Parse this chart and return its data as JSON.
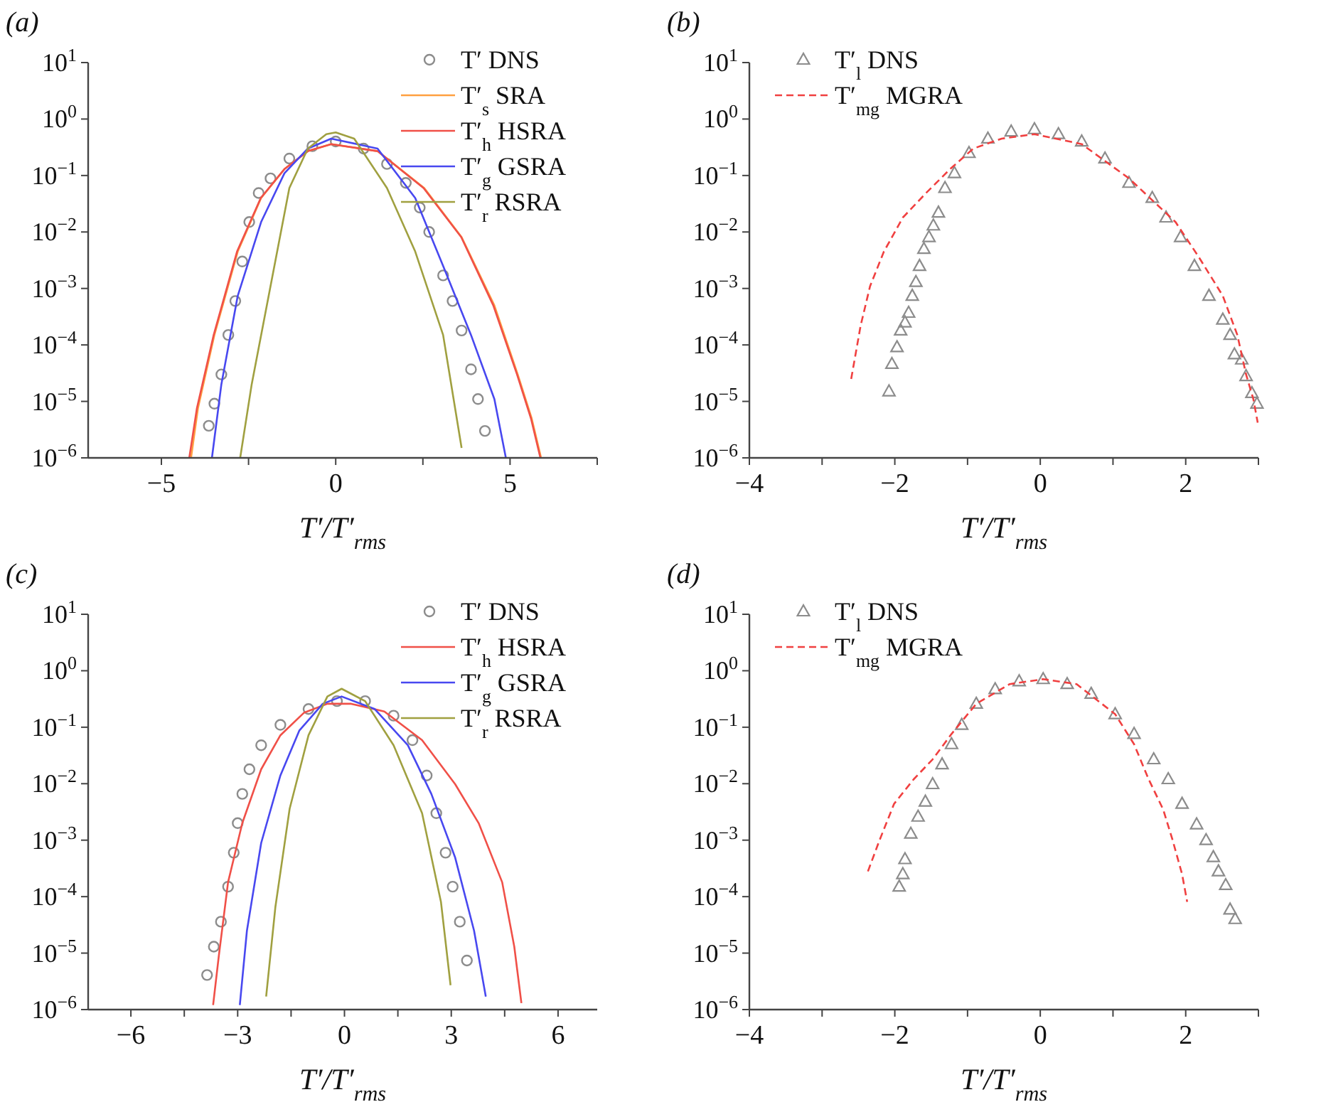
{
  "chart_data": [
    {
      "type": "line",
      "title": "(a)",
      "xlabel": "T′/T′$_{rms}$",
      "log": "y",
      "legend": "top right",
      "xlim": [
        -7.1,
        7.5
      ],
      "xticks": [
        {
          "value": -5,
          "label": "−5"
        },
        {
          "value": -2.5,
          "label": null
        },
        {
          "value": 0,
          "label": "0"
        },
        {
          "value": 2.5,
          "label": null
        },
        {
          "value": 5,
          "label": "5"
        },
        {
          "value": 7.5,
          "label": null
        }
      ],
      "ylim": [
        1e-06,
        10
      ],
      "yticks": [
        {
          "value": 10,
          "label": "10$^{1}$"
        },
        {
          "value": 1,
          "label": "10$^{0}$"
        },
        {
          "value": 0.1,
          "label": "10$^{−1}$"
        },
        {
          "value": 0.01,
          "label": "10$^{−2}$"
        },
        {
          "value": 0.001,
          "label": "10$^{−3}$"
        },
        {
          "value": 0.0001,
          "label": "10$^{−4}$"
        },
        {
          "value": 1e-05,
          "label": "10$^{−5}$"
        },
        {
          "value": 1e-06,
          "label": "10$^{−6}$"
        }
      ],
      "series": [
        {
          "name": "T′ DNS",
          "type": "scatter",
          "marker": "circle",
          "color": "#8c8c8c",
          "x": [
            -3.64,
            -3.48,
            -3.28,
            -3.08,
            -2.88,
            -2.68,
            -2.48,
            -2.21,
            -1.87,
            -1.33,
            -0.67,
            0,
            0.8,
            1.47,
            2.01,
            2.41,
            2.68,
            3.08,
            3.35,
            3.61,
            3.88,
            4.08,
            4.28
          ],
          "values": [
            3.7e-06,
            9.1e-06,
            3e-05,
            0.00015,
            0.0006,
            0.003,
            0.015,
            0.049,
            0.089,
            0.2,
            0.33,
            0.4,
            0.3,
            0.16,
            0.074,
            0.027,
            0.01,
            0.0017,
            0.0006,
            0.00018,
            3.7e-05,
            1.1e-05,
            3e-06
          ]
        },
        {
          "name": "T′$_{s}$ SRA",
          "type": "line",
          "color": "#ffa040",
          "x": [
            -4.15,
            -3.95,
            -3.48,
            -2.81,
            -2.14,
            -1.47,
            -0.8,
            -0.13,
            1.2,
            2.54,
            3.61,
            4.55,
            5.22,
            5.62,
            5.89
          ],
          "values": [
            1e-06,
            7.6e-06,
            0.00015,
            0.0045,
            0.04,
            0.13,
            0.27,
            0.36,
            0.27,
            0.06,
            0.0081,
            0.0005,
            3e-05,
            5e-06,
            1e-06
          ]
        },
        {
          "name": "T′$_{h}$ HSRA",
          "type": "line",
          "color": "#f05048",
          "x": [
            -4.2,
            -3.98,
            -3.5,
            -2.83,
            -2.15,
            -1.47,
            -0.8,
            -0.13,
            1.2,
            2.52,
            3.6,
            4.52,
            5.2,
            5.6,
            5.87
          ],
          "values": [
            1e-06,
            7.6e-06,
            0.00015,
            0.0045,
            0.04,
            0.13,
            0.27,
            0.36,
            0.27,
            0.06,
            0.0081,
            0.0005,
            3e-05,
            5e-06,
            1e-06
          ]
        },
        {
          "name": "T′$_{g}$ GSRA",
          "type": "line",
          "color": "#4848f0",
          "x": [
            -3.55,
            -3.28,
            -2.81,
            -2.14,
            -1.47,
            -0.8,
            -0.13,
            1.2,
            2.28,
            3.08,
            3.88,
            4.55,
            4.88
          ],
          "values": [
            1e-06,
            2e-05,
            0.00074,
            0.015,
            0.11,
            0.3,
            0.45,
            0.3,
            0.04,
            0.0025,
            0.00015,
            1.1e-05,
            1e-06
          ]
        },
        {
          "name": "T′$_{r}$ RSRA",
          "type": "line",
          "color": "#a0a040",
          "x": [
            -2.74,
            -2.41,
            -1.87,
            -1.33,
            -0.8,
            -0.27,
            0,
            0.53,
            1.47,
            2.28,
            3.08,
            3.61
          ],
          "values": [
            1e-06,
            2e-05,
            0.0011,
            0.06,
            0.3,
            0.54,
            0.58,
            0.45,
            0.06,
            0.0045,
            0.00015,
            1.5e-06
          ]
        }
      ]
    },
    {
      "type": "line",
      "title": "(b)",
      "xlabel": "T′/T′$_{rms}$",
      "log": "y",
      "legend": "top left",
      "xlim": [
        -4,
        3
      ],
      "xticks": [
        {
          "value": -4,
          "label": "−4"
        },
        {
          "value": -3,
          "label": null
        },
        {
          "value": -2,
          "label": "−2"
        },
        {
          "value": -1,
          "label": null
        },
        {
          "value": 0,
          "label": "0"
        },
        {
          "value": 1,
          "label": null
        },
        {
          "value": 2,
          "label": "2"
        },
        {
          "value": 3,
          "label": null
        }
      ],
      "ylim": [
        1e-06,
        10
      ],
      "yticks": [
        {
          "value": 10,
          "label": "10$^{1}$"
        },
        {
          "value": 1,
          "label": "10$^{0}$"
        },
        {
          "value": 0.1,
          "label": "10$^{−1}$"
        },
        {
          "value": 0.01,
          "label": "10$^{−2}$"
        },
        {
          "value": 0.001,
          "label": "10$^{−3}$"
        },
        {
          "value": 0.0001,
          "label": "10$^{−4}$"
        },
        {
          "value": 1e-05,
          "label": "10$^{−5}$"
        },
        {
          "value": 1e-06,
          "label": "10$^{−6}$"
        }
      ],
      "series": [
        {
          "name": "T′$_{l}$ DNS",
          "type": "scatter",
          "marker": "triangle",
          "color": "#8c8c8c",
          "x": [
            -2.08,
            -2.04,
            -1.97,
            -1.92,
            -1.86,
            -1.81,
            -1.76,
            -1.71,
            -1.66,
            -1.6,
            -1.53,
            -1.47,
            -1.4,
            -1.31,
            -1.18,
            -0.98,
            -0.72,
            -0.4,
            -0.08,
            0.25,
            0.57,
            0.89,
            1.22,
            1.54,
            1.73,
            1.93,
            2.12,
            2.32,
            2.51,
            2.61,
            2.67,
            2.77,
            2.83,
            2.91,
            2.98
          ],
          "values": [
            1.5e-05,
            4.6e-05,
            9.1e-05,
            0.00018,
            0.00025,
            0.00037,
            0.00074,
            0.0013,
            0.0025,
            0.005,
            0.0081,
            0.013,
            0.022,
            0.06,
            0.11,
            0.25,
            0.45,
            0.6,
            0.66,
            0.54,
            0.4,
            0.2,
            0.074,
            0.04,
            0.018,
            0.0081,
            0.0025,
            0.00074,
            0.00028,
            0.00015,
            6.8e-05,
            5.5e-05,
            2.8e-05,
            1.4e-05,
            9.1e-06
          ]
        },
        {
          "name": "T′$_{mg}$ MGRA",
          "type": "line",
          "line_style": "dashed",
          "color": "#f04040",
          "x": [
            -2.6,
            -2.47,
            -2.34,
            -2.15,
            -1.89,
            -1.57,
            -1.24,
            -0.92,
            -0.53,
            -0.08,
            0.57,
            1.22,
            1.86,
            2.18,
            2.51,
            2.71,
            2.83,
            2.93,
            2.99
          ],
          "values": [
            2.5e-05,
            0.00022,
            0.0011,
            0.0045,
            0.018,
            0.049,
            0.13,
            0.3,
            0.45,
            0.54,
            0.36,
            0.089,
            0.015,
            0.0036,
            0.00074,
            0.00015,
            3e-05,
            1.1e-05,
            4.2e-06
          ]
        }
      ]
    },
    {
      "type": "line",
      "title": "(c)",
      "xlabel": "T′/T′$_{rms}$",
      "log": "y",
      "legend": "top right",
      "xlim": [
        -7.2,
        7.1
      ],
      "xticks": [
        {
          "value": -6,
          "label": "−6"
        },
        {
          "value": -4.5,
          "label": null
        },
        {
          "value": -3,
          "label": "−3"
        },
        {
          "value": -1.5,
          "label": null
        },
        {
          "value": 0,
          "label": "0"
        },
        {
          "value": 1.5,
          "label": null
        },
        {
          "value": 3,
          "label": "3"
        },
        {
          "value": 4.5,
          "label": null
        },
        {
          "value": 6,
          "label": "6"
        }
      ],
      "ylim": [
        1e-06,
        10
      ],
      "yticks": [
        {
          "value": 10,
          "label": "10$^{1}$"
        },
        {
          "value": 1,
          "label": "10$^{0}$"
        },
        {
          "value": 0.1,
          "label": "10$^{−1}$"
        },
        {
          "value": 0.01,
          "label": "10$^{−2}$"
        },
        {
          "value": 0.001,
          "label": "10$^{−3}$"
        },
        {
          "value": 0.0001,
          "label": "10$^{−4}$"
        },
        {
          "value": 1e-05,
          "label": "10$^{−5}$"
        },
        {
          "value": 1e-06,
          "label": "10$^{−6}$"
        }
      ],
      "series": [
        {
          "name": "T′ DNS",
          "type": "scatter",
          "marker": "circle",
          "color": "#8c8c8c",
          "x": [
            -3.86,
            -3.67,
            -3.47,
            -3.27,
            -3.11,
            -3.0,
            -2.87,
            -2.67,
            -2.34,
            -1.8,
            -1.01,
            -0.21,
            0.58,
            1.38,
            1.91,
            2.31,
            2.58,
            2.84,
            3.04,
            3.24,
            3.44
          ],
          "values": [
            4.1e-06,
            1.3e-05,
            3.6e-05,
            0.00015,
            0.0006,
            0.002,
            0.0066,
            0.018,
            0.048,
            0.11,
            0.21,
            0.29,
            0.29,
            0.16,
            0.059,
            0.014,
            0.003,
            0.0006,
            0.00015,
            3.6e-05,
            7.4e-06
          ]
        },
        {
          "name": "T′$_{h}$ HSRA",
          "type": "line",
          "color": "#f05048",
          "x": [
            -3.69,
            -3.53,
            -3.27,
            -2.87,
            -2.34,
            -1.8,
            -1.14,
            -0.48,
            0.19,
            1.12,
            2.18,
            3.11,
            3.77,
            4.43,
            4.77,
            4.97
          ],
          "values": [
            1.2e-06,
            8.9e-06,
            0.00018,
            0.002,
            0.018,
            0.072,
            0.18,
            0.26,
            0.26,
            0.19,
            0.059,
            0.0098,
            0.002,
            0.00018,
            1.3e-05,
            1.3e-06
          ]
        },
        {
          "name": "T′$_{g}$ GSRA",
          "type": "line",
          "color": "#4848f0",
          "x": [
            -2.94,
            -2.74,
            -2.34,
            -1.8,
            -1.27,
            -0.61,
            -0.08,
            0.85,
            1.78,
            2.44,
            3.11,
            3.64,
            3.97
          ],
          "values": [
            1.2e-06,
            2.5e-05,
            0.00089,
            0.014,
            0.087,
            0.26,
            0.35,
            0.21,
            0.048,
            0.0066,
            0.00049,
            2.5e-05,
            1.7e-06
          ]
        },
        {
          "name": "T′$_{r}$ RSRA",
          "type": "line",
          "color": "#a0a040",
          "x": [
            -2.2,
            -1.94,
            -1.54,
            -1.01,
            -0.48,
            -0.08,
            0.58,
            1.38,
            2.18,
            2.71,
            2.98
          ],
          "values": [
            1.7e-06,
            6.6e-05,
            0.0036,
            0.072,
            0.35,
            0.48,
            0.29,
            0.048,
            0.003,
            8.1e-05,
            2.7e-06
          ]
        }
      ]
    },
    {
      "type": "line",
      "title": "(d)",
      "xlabel": "T′/T′$_{rms}$",
      "log": "y",
      "legend": "top left",
      "xlim": [
        -4,
        3
      ],
      "xticks": [
        {
          "value": -4,
          "label": "−4"
        },
        {
          "value": -3,
          "label": null
        },
        {
          "value": -2,
          "label": "−2"
        },
        {
          "value": -1,
          "label": null
        },
        {
          "value": 0,
          "label": "0"
        },
        {
          "value": 1,
          "label": null
        },
        {
          "value": 2,
          "label": "2"
        },
        {
          "value": 3,
          "label": null
        }
      ],
      "ylim": [
        1e-06,
        10
      ],
      "yticks": [
        {
          "value": 10,
          "label": "10$^{1}$"
        },
        {
          "value": 1,
          "label": "10$^{0}$"
        },
        {
          "value": 0.1,
          "label": "10$^{−1}$"
        },
        {
          "value": 0.01,
          "label": "10$^{−2}$"
        },
        {
          "value": 0.001,
          "label": "10$^{−3}$"
        },
        {
          "value": 0.0001,
          "label": "10$^{−4}$"
        },
        {
          "value": 1e-05,
          "label": "10$^{−5}$"
        },
        {
          "value": 1e-06,
          "label": "10$^{−6}$"
        }
      ],
      "series": [
        {
          "name": "T′$_{l}$ DNS",
          "type": "scatter",
          "marker": "triangle",
          "color": "#8c8c8c",
          "x": [
            -1.94,
            -1.89,
            -1.86,
            -1.78,
            -1.68,
            -1.58,
            -1.48,
            -1.35,
            -1.22,
            -1.08,
            -0.88,
            -0.62,
            -0.29,
            0.04,
            0.37,
            0.7,
            1.03,
            1.29,
            1.56,
            1.76,
            1.95,
            2.15,
            2.28,
            2.38,
            2.45,
            2.55,
            2.61,
            2.68
          ],
          "values": [
            0.00015,
            0.00025,
            0.00046,
            0.0013,
            0.0026,
            0.0048,
            0.0098,
            0.022,
            0.05,
            0.11,
            0.26,
            0.47,
            0.65,
            0.71,
            0.58,
            0.39,
            0.17,
            0.076,
            0.027,
            0.012,
            0.0044,
            0.0019,
            0.001,
            0.0005,
            0.00028,
            0.00016,
            5.9e-05,
            4e-05
          ]
        },
        {
          "name": "T′$_{mg}$ MGRA",
          "type": "line",
          "line_style": "dashed",
          "color": "#f04040",
          "x": [
            -2.37,
            -2.21,
            -2.01,
            -1.74,
            -1.48,
            -1.22,
            -0.88,
            -0.42,
            0.04,
            0.5,
            1.03,
            1.29,
            1.49,
            1.69,
            1.82,
            1.95,
            2.02
          ],
          "values": [
            0.00028,
            0.001,
            0.0044,
            0.012,
            0.027,
            0.076,
            0.26,
            0.58,
            0.71,
            0.58,
            0.17,
            0.05,
            0.012,
            0.0035,
            0.001,
            0.00025,
            8.1e-05
          ]
        }
      ]
    }
  ]
}
